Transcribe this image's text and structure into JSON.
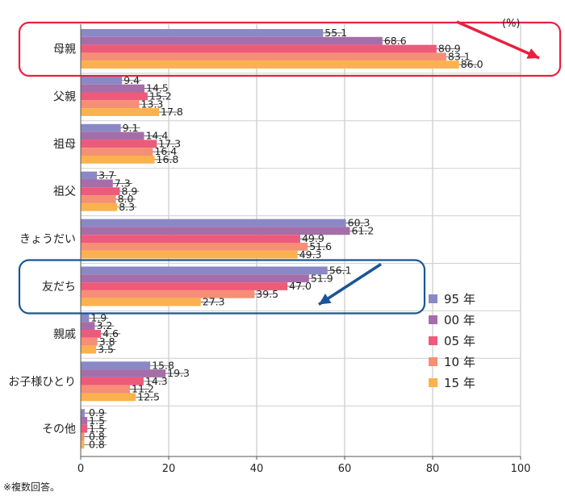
{
  "chart_data": {
    "type": "bar",
    "orientation": "horizontal",
    "unit_label": "(%)",
    "footnote": "※複数回答。",
    "categories": [
      "母親",
      "父親",
      "祖母",
      "祖父",
      "きょうだい",
      "友だち",
      "親戚",
      "お子様ひとり",
      "その他"
    ],
    "series": [
      {
        "name": "95 年",
        "color": "#8b88c6",
        "values": [
          55.1,
          9.4,
          9.1,
          3.7,
          60.3,
          56.1,
          1.9,
          15.8,
          0.9
        ]
      },
      {
        "name": "00 年",
        "color": "#a66ea8",
        "values": [
          68.6,
          14.5,
          14.4,
          7.3,
          61.2,
          51.9,
          3.2,
          19.3,
          1.5
        ]
      },
      {
        "name": "05 年",
        "color": "#ee5a7a",
        "values": [
          80.9,
          15.2,
          17.3,
          8.9,
          49.9,
          47.0,
          4.6,
          14.3,
          1.5
        ]
      },
      {
        "name": "10 年",
        "color": "#f58f76",
        "values": [
          83.1,
          13.3,
          16.4,
          8.0,
          51.6,
          39.5,
          3.8,
          11.2,
          0.8
        ]
      },
      {
        "name": "15 年",
        "color": "#fbb24e",
        "values": [
          86.0,
          17.8,
          16.8,
          8.3,
          49.3,
          27.3,
          3.5,
          12.5,
          0.8
        ]
      }
    ],
    "value_labels": [
      [
        "55.1",
        "9.4",
        "9.1",
        "3.7",
        "60.3",
        "56.1",
        "1.9",
        "15.8",
        "0.9"
      ],
      [
        "68.6",
        "14.5",
        "14.4",
        "7.3",
        "61.2",
        "51.9",
        "3.2",
        "19.3",
        "1.5"
      ],
      [
        "80.9",
        "15.2",
        "17.3",
        "8.9",
        "49.9",
        "47.0",
        "4.6",
        "14.3",
        "1.5"
      ],
      [
        "83.1",
        "13.3",
        "16.4",
        "8.0",
        "51.6",
        "39.5",
        "3.8",
        "11.2",
        "0.8"
      ],
      [
        "86.0",
        "17.8",
        "16.8",
        "8.3",
        "49.3",
        "27.3",
        "3.5",
        "12.5",
        "0.8"
      ]
    ],
    "xlim": [
      0,
      100
    ],
    "xticks": [
      "0",
      "20",
      "40",
      "60",
      "80",
      "100"
    ],
    "grid": true,
    "legend_position": "right",
    "highlights": [
      {
        "category": "母親",
        "color": "#e8203f",
        "arrow": "up-trend"
      },
      {
        "category": "友だち",
        "color": "#1a5596",
        "arrow": "down-trend"
      }
    ]
  }
}
